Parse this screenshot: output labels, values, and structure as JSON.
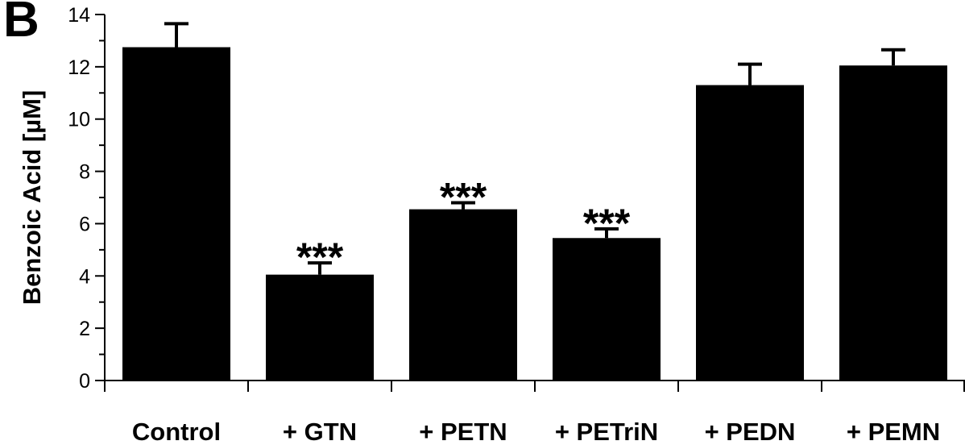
{
  "panel_label": "B",
  "chart_data": {
    "type": "bar",
    "title": "",
    "xlabel": "",
    "ylabel": "Benzoic Acid [µM]",
    "ylim": [
      0,
      14
    ],
    "yticks": [
      0,
      2,
      4,
      6,
      8,
      10,
      12,
      14
    ],
    "categories": [
      "Control",
      "+ GTN",
      "+ PETN",
      "+ PETriN",
      "+ PEDN",
      "+ PEMN"
    ],
    "values": [
      12.75,
      4.05,
      6.55,
      5.45,
      11.3,
      12.05
    ],
    "errors": [
      0.9,
      0.45,
      0.25,
      0.35,
      0.8,
      0.6
    ],
    "annotations": [
      "",
      "***",
      "***",
      "***",
      "",
      ""
    ],
    "bar_color": "#000000",
    "grid": false,
    "legend": "none"
  }
}
